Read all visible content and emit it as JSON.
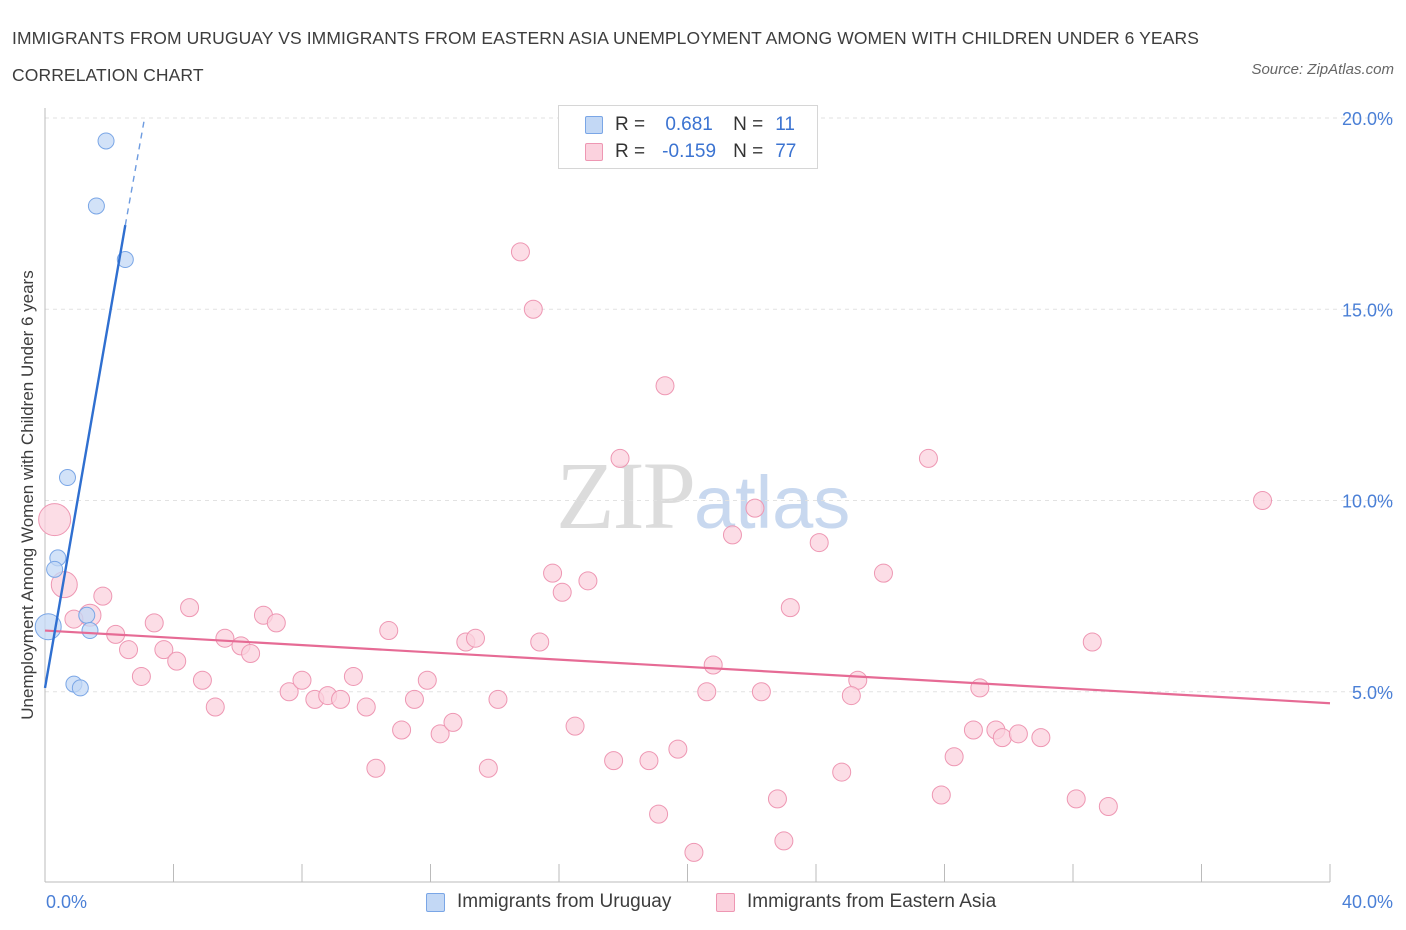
{
  "title": "IMMIGRANTS FROM URUGUAY VS IMMIGRANTS FROM EASTERN ASIA UNEMPLOYMENT AMONG WOMEN WITH CHILDREN UNDER 6 YEARS CORRELATION CHART",
  "source": "Source: ZipAtlas.com",
  "watermark": {
    "zip": "ZIP",
    "atlas": "atlas"
  },
  "legend_top": {
    "rows": [
      {
        "r_label": "R =",
        "r_value": "0.681",
        "n_label": "N =",
        "n_value": "11",
        "color": "#a9c8f2",
        "border": "#7aa6e6"
      },
      {
        "r_label": "R =",
        "r_value": "-0.159",
        "n_label": "N =",
        "n_value": "77",
        "color": "#f8c4d4",
        "border": "#ee97b3"
      }
    ]
  },
  "bottom_legend": [
    {
      "label": "Immigrants from Uruguay",
      "color": "#c3d8f5",
      "border": "#7aa6e6"
    },
    {
      "label": "Immigrants from Eastern Asia",
      "color": "#fbd2de",
      "border": "#ee97b3"
    }
  ],
  "chart_data": {
    "type": "scatter",
    "title": "IMMIGRANTS FROM URUGUAY VS IMMIGRANTS FROM EASTERN ASIA UNEMPLOYMENT AMONG WOMEN WITH CHILDREN UNDER 6 YEARS CORRELATION CHART",
    "xlabel": "",
    "ylabel": "Unemployment Among Women with Children Under 6 years",
    "xlim": [
      0,
      40
    ],
    "ylim": [
      0,
      20
    ],
    "x_tick_labels": [
      "0.0%",
      "40.0%"
    ],
    "y_ticks": [
      5,
      10,
      15,
      20
    ],
    "y_tick_labels": [
      "5.0%",
      "10.0%",
      "15.0%",
      "20.0%"
    ],
    "grid": true,
    "legend_placement": "bottom",
    "series": [
      {
        "name": "Immigrants from Uruguay",
        "color": "#7aa6e6",
        "fill": "#c3d8f5",
        "r": 0.681,
        "n": 11,
        "points": [
          {
            "x": 1.9,
            "y": 19.4,
            "s": 8
          },
          {
            "x": 1.6,
            "y": 17.7,
            "s": 8
          },
          {
            "x": 2.5,
            "y": 16.3,
            "s": 8
          },
          {
            "x": 0.7,
            "y": 10.6,
            "s": 8
          },
          {
            "x": 0.4,
            "y": 8.5,
            "s": 8
          },
          {
            "x": 0.3,
            "y": 8.2,
            "s": 8
          },
          {
            "x": 1.3,
            "y": 7.0,
            "s": 8
          },
          {
            "x": 0.1,
            "y": 6.7,
            "s": 13
          },
          {
            "x": 1.4,
            "y": 6.6,
            "s": 8
          },
          {
            "x": 0.9,
            "y": 5.2,
            "s": 8
          },
          {
            "x": 1.1,
            "y": 5.1,
            "s": 8
          }
        ],
        "trend": {
          "x1": 0.0,
          "y1": 5.1,
          "x2": 2.5,
          "y2": 17.2,
          "dash_x2": 3.1,
          "dash_y2": 20.0
        }
      },
      {
        "name": "Immigrants from Eastern Asia",
        "color": "#ee97b3",
        "fill": "#fbd2de",
        "r": -0.159,
        "n": 77,
        "points": [
          {
            "x": 0.3,
            "y": 9.5,
            "s": 16
          },
          {
            "x": 0.6,
            "y": 7.8,
            "s": 13
          },
          {
            "x": 1.4,
            "y": 7.0,
            "s": 11
          },
          {
            "x": 1.8,
            "y": 7.5,
            "s": 9
          },
          {
            "x": 2.2,
            "y": 6.5,
            "s": 9
          },
          {
            "x": 2.6,
            "y": 6.1,
            "s": 9
          },
          {
            "x": 3.0,
            "y": 5.4,
            "s": 9
          },
          {
            "x": 3.4,
            "y": 6.8,
            "s": 9
          },
          {
            "x": 3.7,
            "y": 6.1,
            "s": 9
          },
          {
            "x": 4.1,
            "y": 5.8,
            "s": 9
          },
          {
            "x": 4.5,
            "y": 7.2,
            "s": 9
          },
          {
            "x": 4.9,
            "y": 5.3,
            "s": 9
          },
          {
            "x": 5.3,
            "y": 4.6,
            "s": 9
          },
          {
            "x": 5.6,
            "y": 6.4,
            "s": 9
          },
          {
            "x": 6.1,
            "y": 6.2,
            "s": 9
          },
          {
            "x": 6.4,
            "y": 6.0,
            "s": 9
          },
          {
            "x": 6.8,
            "y": 7.0,
            "s": 9
          },
          {
            "x": 7.2,
            "y": 6.8,
            "s": 9
          },
          {
            "x": 7.6,
            "y": 5.0,
            "s": 9
          },
          {
            "x": 8.0,
            "y": 5.3,
            "s": 9
          },
          {
            "x": 8.4,
            "y": 4.8,
            "s": 9
          },
          {
            "x": 8.8,
            "y": 4.9,
            "s": 9
          },
          {
            "x": 9.2,
            "y": 4.8,
            "s": 9
          },
          {
            "x": 9.6,
            "y": 5.4,
            "s": 9
          },
          {
            "x": 10.0,
            "y": 4.6,
            "s": 9
          },
          {
            "x": 10.3,
            "y": 3.0,
            "s": 9
          },
          {
            "x": 10.7,
            "y": 6.6,
            "s": 9
          },
          {
            "x": 11.1,
            "y": 4.0,
            "s": 9
          },
          {
            "x": 11.5,
            "y": 4.8,
            "s": 9
          },
          {
            "x": 11.9,
            "y": 5.3,
            "s": 9
          },
          {
            "x": 12.3,
            "y": 3.9,
            "s": 9
          },
          {
            "x": 12.7,
            "y": 4.2,
            "s": 9
          },
          {
            "x": 13.1,
            "y": 6.3,
            "s": 9
          },
          {
            "x": 13.4,
            "y": 6.4,
            "s": 9
          },
          {
            "x": 13.8,
            "y": 3.0,
            "s": 9
          },
          {
            "x": 14.1,
            "y": 4.8,
            "s": 9
          },
          {
            "x": 14.8,
            "y": 16.5,
            "s": 9
          },
          {
            "x": 15.2,
            "y": 15.0,
            "s": 9
          },
          {
            "x": 15.4,
            "y": 6.3,
            "s": 9
          },
          {
            "x": 15.8,
            "y": 8.1,
            "s": 9
          },
          {
            "x": 16.1,
            "y": 7.6,
            "s": 9
          },
          {
            "x": 16.5,
            "y": 4.1,
            "s": 9
          },
          {
            "x": 16.9,
            "y": 7.9,
            "s": 9
          },
          {
            "x": 17.7,
            "y": 3.2,
            "s": 9
          },
          {
            "x": 17.9,
            "y": 11.1,
            "s": 9
          },
          {
            "x": 18.8,
            "y": 3.2,
            "s": 9
          },
          {
            "x": 19.1,
            "y": 1.8,
            "s": 9
          },
          {
            "x": 19.3,
            "y": 13.0,
            "s": 9
          },
          {
            "x": 19.7,
            "y": 3.5,
            "s": 9
          },
          {
            "x": 20.2,
            "y": 0.8,
            "s": 9
          },
          {
            "x": 20.6,
            "y": 5.0,
            "s": 9
          },
          {
            "x": 20.8,
            "y": 5.7,
            "s": 9
          },
          {
            "x": 21.4,
            "y": 9.1,
            "s": 9
          },
          {
            "x": 22.1,
            "y": 9.8,
            "s": 9
          },
          {
            "x": 22.3,
            "y": 5.0,
            "s": 9
          },
          {
            "x": 22.8,
            "y": 2.2,
            "s": 9
          },
          {
            "x": 23.0,
            "y": 1.1,
            "s": 9
          },
          {
            "x": 23.2,
            "y": 7.2,
            "s": 9
          },
          {
            "x": 24.1,
            "y": 8.9,
            "s": 9
          },
          {
            "x": 24.8,
            "y": 2.9,
            "s": 9
          },
          {
            "x": 25.3,
            "y": 5.3,
            "s": 9
          },
          {
            "x": 25.1,
            "y": 4.9,
            "s": 9
          },
          {
            "x": 26.1,
            "y": 8.1,
            "s": 9
          },
          {
            "x": 27.5,
            "y": 11.1,
            "s": 9
          },
          {
            "x": 27.9,
            "y": 2.3,
            "s": 9
          },
          {
            "x": 28.3,
            "y": 3.3,
            "s": 9
          },
          {
            "x": 28.9,
            "y": 4.0,
            "s": 9
          },
          {
            "x": 29.1,
            "y": 5.1,
            "s": 9
          },
          {
            "x": 29.6,
            "y": 4.0,
            "s": 9
          },
          {
            "x": 29.8,
            "y": 3.8,
            "s": 9
          },
          {
            "x": 30.3,
            "y": 3.9,
            "s": 9
          },
          {
            "x": 31.0,
            "y": 3.8,
            "s": 9
          },
          {
            "x": 32.1,
            "y": 2.2,
            "s": 9
          },
          {
            "x": 32.6,
            "y": 6.3,
            "s": 9
          },
          {
            "x": 33.1,
            "y": 2.0,
            "s": 9
          },
          {
            "x": 37.9,
            "y": 10.0,
            "s": 9
          },
          {
            "x": 0.9,
            "y": 6.9,
            "s": 9
          }
        ],
        "trend": {
          "x1": 0.0,
          "y1": 6.6,
          "x2": 40.0,
          "y2": 4.7
        }
      }
    ]
  }
}
